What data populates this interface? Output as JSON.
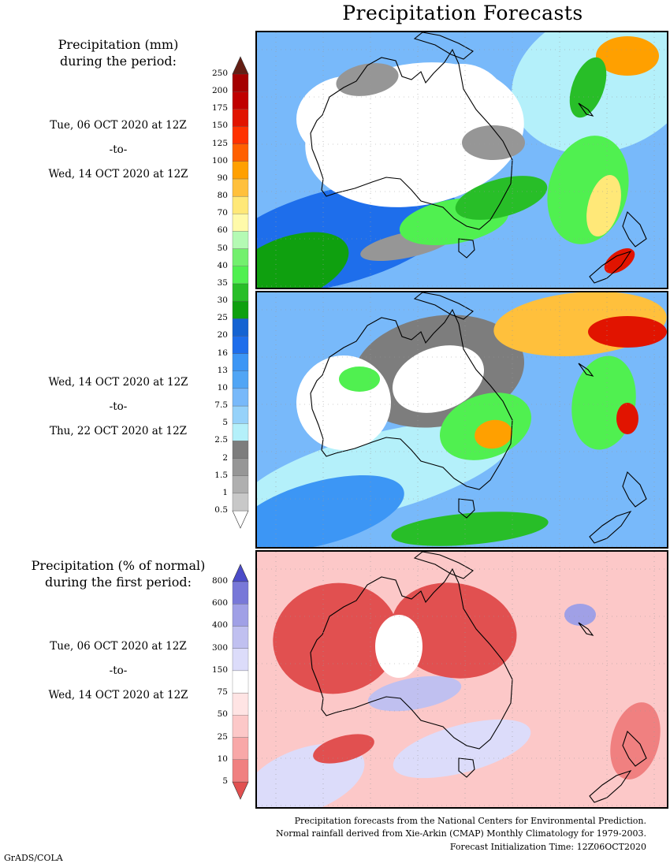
{
  "title": "Precipitation Forecasts",
  "amount_legend": {
    "heading": [
      "Precipitation (mm)",
      "during the period:"
    ],
    "levels": [
      "0.5",
      "1",
      "1.5",
      "2",
      "2.5",
      "5",
      "7.5",
      "10",
      "13",
      "16",
      "20",
      "25",
      "30",
      "35",
      "40",
      "50",
      "60",
      "70",
      "80",
      "90",
      "100",
      "125",
      "150",
      "175",
      "200",
      "250"
    ],
    "colors": [
      "#ffffff",
      "#c8c8c8",
      "#afafaf",
      "#969696",
      "#7d7d7d",
      "#b4f0fa",
      "#96d2fa",
      "#78b9fa",
      "#50a5f5",
      "#3c96f5",
      "#1e6eeb",
      "#1463d2",
      "#0fa00f",
      "#28be28",
      "#50f050",
      "#73f06e",
      "#b4fab4",
      "#fffaaa",
      "#ffe878",
      "#ffc03c",
      "#ffa000",
      "#ff6000",
      "#ff3200",
      "#e11400",
      "#c00000",
      "#a50000",
      "#641e14"
    ]
  },
  "anomaly_legend": {
    "heading": [
      "Precipitation (% of normal)",
      "during the first period:"
    ],
    "levels": [
      "5",
      "10",
      "25",
      "50",
      "75",
      "150",
      "300",
      "400",
      "600",
      "800"
    ],
    "colors": [
      "#e15050",
      "#f08080",
      "#f8a8a8",
      "#fcc8c8",
      "#ffe4e4",
      "#ffffff",
      "#dcdcfa",
      "#c0c0f0",
      "#a0a0e6",
      "#7878d8",
      "#4b4bc8"
    ]
  },
  "periods": [
    {
      "from": "Tue, 06 OCT 2020 at 12Z",
      "sep": "-to-",
      "to": "Wed, 14 OCT 2020 at 12Z"
    },
    {
      "from": "Wed, 14 OCT 2020 at 12Z",
      "sep": "-to-",
      "to": "Thu, 22 OCT 2020 at 12Z"
    },
    {
      "from": "Tue, 06 OCT 2020 at 12Z",
      "sep": "-to-",
      "to": "Wed, 14 OCT 2020 at 12Z"
    }
  ],
  "footer": [
    "Precipitation forecasts from the National Centers for Environmental Prediction.",
    "Normal rainfall derived from Xie-Arkin (CMAP) Monthly Climatology for 1979-2003.",
    "Forecast Initialization Time: 12Z06OCT2020"
  ],
  "credit": "GrADS/COLA"
}
